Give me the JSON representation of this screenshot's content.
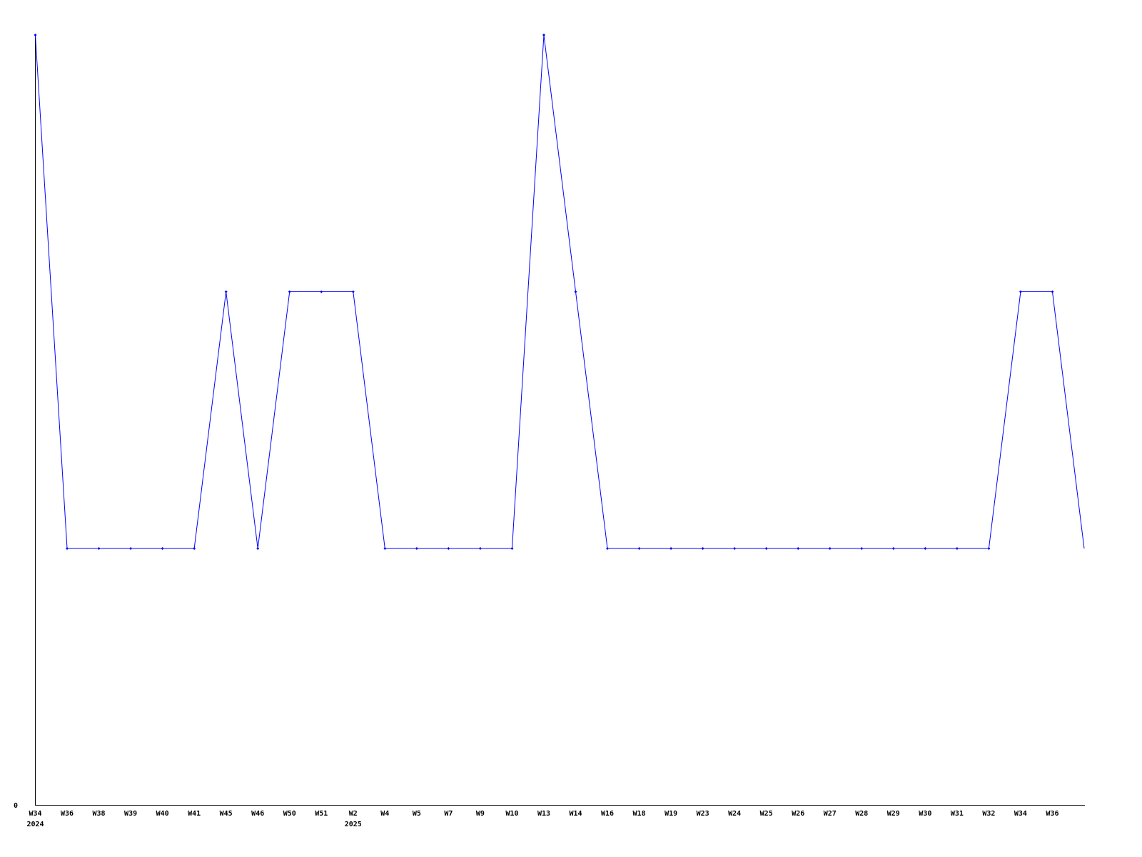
{
  "chart_data": {
    "type": "line",
    "title": "",
    "xlabel": "",
    "ylabel": "",
    "ylim": [
      0,
      3
    ],
    "y_tick_labels": [
      "0"
    ],
    "grid": false,
    "line_color": "#0000ff",
    "axis_color": "#000000",
    "categories": [
      "W34",
      "W36",
      "W38",
      "W39",
      "W40",
      "W41",
      "W45",
      "W46",
      "W50",
      "W51",
      "W2",
      "W4",
      "W5",
      "W7",
      "W9",
      "W10",
      "W13",
      "W14",
      "W16",
      "W18",
      "W19",
      "W23",
      "W24",
      "W25",
      "W26",
      "W27",
      "W28",
      "W29",
      "W30",
      "W31",
      "W32",
      "W34",
      "W36"
    ],
    "year_labels": [
      {
        "index": 0,
        "label": "2024"
      },
      {
        "index": 10,
        "label": "2025"
      }
    ],
    "series": [
      {
        "values": [
          3,
          1,
          1,
          1,
          1,
          1,
          2,
          1,
          2,
          2,
          2,
          1,
          1,
          1,
          1,
          1,
          3,
          2,
          1,
          1,
          1,
          1,
          1,
          1,
          1,
          1,
          1,
          1,
          1,
          1,
          1,
          2,
          2
        ]
      }
    ],
    "trailing_value": 1
  }
}
